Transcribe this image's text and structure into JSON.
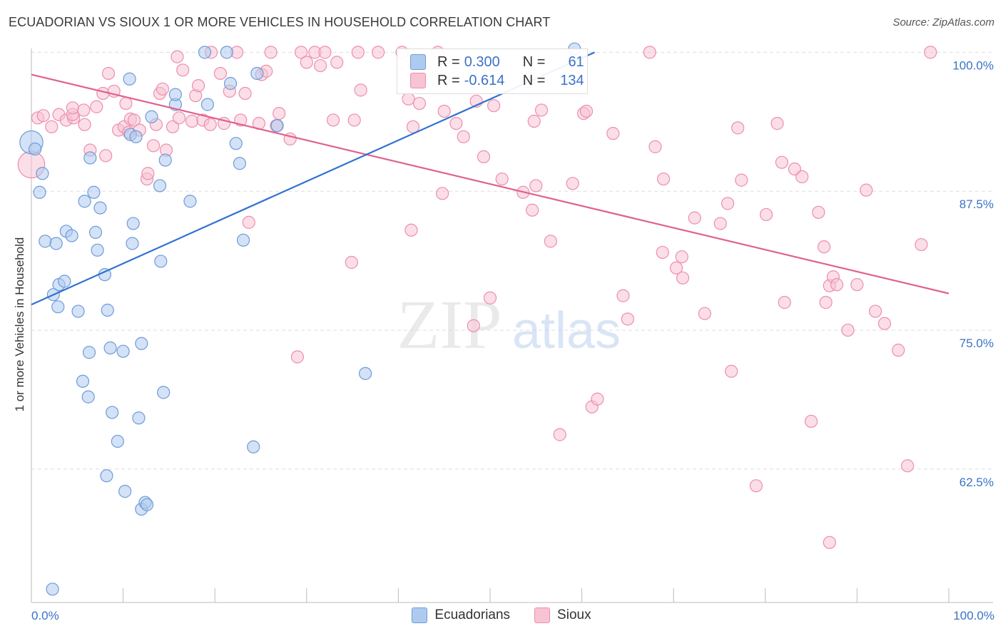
{
  "title": "ECUADORIAN VS SIOUX 1 OR MORE VEHICLES IN HOUSEHOLD CORRELATION CHART",
  "source": "Source: ZipAtlas.com",
  "watermark": {
    "zip": "ZIP",
    "atlas": "atlas"
  },
  "colors": {
    "ecuadorian_fill": "#aecbef",
    "ecuadorian_stroke": "#6f9bd8",
    "ecuadorian_line": "#2f72d0",
    "sioux_fill": "#f8c3d3",
    "sioux_stroke": "#ec8fad",
    "sioux_line": "#e0618f",
    "value_text": "#3b72c6",
    "grid": "#dddddd"
  },
  "stats": {
    "ecuadorian": {
      "r_label": "R =",
      "r_value": "0.300",
      "n_label": "N =",
      "n_value": "61"
    },
    "sioux": {
      "r_label": "R =",
      "r_value": "-0.614",
      "n_label": "N =",
      "n_value": "134"
    }
  },
  "legend": {
    "ecuadorian": "Ecuadorians",
    "sioux": "Sioux"
  },
  "chart_data": {
    "type": "scatter",
    "title": "ECUADORIAN VS SIOUX 1 OR MORE VEHICLES IN HOUSEHOLD CORRELATION CHART",
    "xlabel": "",
    "ylabel": "1 or more Vehicles in Household",
    "xlim": [
      0,
      100
    ],
    "ylim": [
      50.5,
      100.6
    ],
    "x_tick_labels": [
      {
        "value": 0,
        "label": "0.0%"
      },
      {
        "value": 100,
        "label": "100.0%"
      }
    ],
    "x_minor_ticks": [
      10,
      20,
      30,
      40,
      50,
      60,
      70,
      80,
      90
    ],
    "y_ticks": [
      {
        "value": 100.0,
        "label": "100.0%"
      },
      {
        "value": 87.5,
        "label": "87.5%"
      },
      {
        "value": 75.0,
        "label": "75.0%"
      },
      {
        "value": 62.5,
        "label": "62.5%"
      }
    ],
    "series": [
      {
        "name": "Ecuadorians",
        "trend": {
          "x0": 0,
          "y0": 77.3,
          "x1": 61.4,
          "y1": 100.0
        },
        "points": [
          [
            0.0,
            91.9,
            1.9
          ],
          [
            0.4,
            91.3,
            1
          ],
          [
            1.2,
            89.1,
            1
          ],
          [
            0.9,
            87.4,
            1
          ],
          [
            1.5,
            83.0,
            1
          ],
          [
            2.7,
            82.8,
            1
          ],
          [
            3.8,
            83.9,
            1
          ],
          [
            4.4,
            83.5,
            1
          ],
          [
            2.4,
            78.2,
            1
          ],
          [
            2.9,
            77.1,
            1
          ],
          [
            3.0,
            79.1,
            1
          ],
          [
            3.6,
            79.4,
            1
          ],
          [
            5.1,
            76.7,
            1
          ],
          [
            5.6,
            70.4,
            1
          ],
          [
            6.2,
            69.0,
            1
          ],
          [
            6.3,
            73.0,
            1
          ],
          [
            6.4,
            90.5,
            1
          ],
          [
            6.8,
            87.4,
            1
          ],
          [
            5.8,
            86.6,
            1
          ],
          [
            7.0,
            83.8,
            1
          ],
          [
            7.2,
            82.2,
            1
          ],
          [
            7.5,
            86.0,
            1
          ],
          [
            8.0,
            80.0,
            1
          ],
          [
            8.3,
            76.8,
            1
          ],
          [
            8.6,
            73.4,
            1
          ],
          [
            8.2,
            61.9,
            1
          ],
          [
            10.0,
            73.1,
            1
          ],
          [
            9.4,
            65.0,
            1
          ],
          [
            8.8,
            67.6,
            1
          ],
          [
            10.2,
            60.5,
            1
          ],
          [
            10.7,
            97.6,
            1
          ],
          [
            10.8,
            92.6,
            1
          ],
          [
            11.0,
            82.8,
            1
          ],
          [
            11.1,
            84.6,
            1
          ],
          [
            11.4,
            92.4,
            1
          ],
          [
            12.0,
            73.8,
            1
          ],
          [
            11.7,
            67.1,
            1
          ],
          [
            12.0,
            58.9,
            1
          ],
          [
            12.4,
            59.5,
            1
          ],
          [
            12.6,
            59.3,
            1
          ],
          [
            13.1,
            94.2,
            1
          ],
          [
            14.0,
            88.0,
            1
          ],
          [
            14.1,
            81.2,
            1
          ],
          [
            14.6,
            90.3,
            1
          ],
          [
            14.4,
            69.4,
            1
          ],
          [
            15.7,
            95.3,
            1
          ],
          [
            15.7,
            96.2,
            1
          ],
          [
            17.3,
            86.6,
            1
          ],
          [
            18.9,
            100.0,
            1
          ],
          [
            19.2,
            95.3,
            1
          ],
          [
            21.3,
            100.0,
            1
          ],
          [
            21.7,
            97.2,
            1
          ],
          [
            22.3,
            91.8,
            1
          ],
          [
            22.7,
            90.0,
            1
          ],
          [
            23.1,
            83.1,
            1
          ],
          [
            24.2,
            64.5,
            1
          ],
          [
            24.6,
            98.1,
            1
          ],
          [
            26.8,
            93.4,
            1
          ],
          [
            36.4,
            71.1,
            1
          ],
          [
            59.2,
            100.3,
            1
          ],
          [
            2.3,
            51.7,
            1
          ]
        ]
      },
      {
        "name": "Sioux",
        "trend": {
          "x0": 0,
          "y0": 98.0,
          "x1": 100,
          "y1": 78.3
        },
        "points": [
          [
            0.0,
            89.9,
            2.2
          ],
          [
            0.7,
            94.1,
            1
          ],
          [
            1.3,
            94.3,
            1
          ],
          [
            2.2,
            93.3,
            1
          ],
          [
            3.0,
            94.4,
            1
          ],
          [
            3.8,
            93.9,
            1
          ],
          [
            4.6,
            94.1,
            1
          ],
          [
            4.5,
            94.4,
            1
          ],
          [
            4.5,
            95.0,
            1
          ],
          [
            5.8,
            93.5,
            1
          ],
          [
            5.7,
            94.8,
            1
          ],
          [
            6.4,
            91.2,
            1
          ],
          [
            7.1,
            95.1,
            1
          ],
          [
            7.8,
            96.3,
            1
          ],
          [
            8.1,
            90.7,
            1
          ],
          [
            8.4,
            98.1,
            1
          ],
          [
            9.0,
            96.5,
            1
          ],
          [
            9.5,
            93.0,
            1
          ],
          [
            10.3,
            95.4,
            1
          ],
          [
            10.1,
            93.3,
            1
          ],
          [
            10.6,
            92.8,
            1
          ],
          [
            10.8,
            94.0,
            1
          ],
          [
            11.2,
            93.9,
            1
          ],
          [
            11.8,
            93.0,
            1
          ],
          [
            12.6,
            88.6,
            1
          ],
          [
            12.7,
            89.1,
            1
          ],
          [
            13.3,
            91.6,
            1
          ],
          [
            13.6,
            93.5,
            1
          ],
          [
            14.0,
            96.3,
            1
          ],
          [
            14.3,
            96.7,
            1
          ],
          [
            14.7,
            91.2,
            1
          ],
          [
            15.4,
            93.3,
            1
          ],
          [
            16.1,
            94.1,
            1
          ],
          [
            15.9,
            99.6,
            1
          ],
          [
            16.5,
            98.4,
            1
          ],
          [
            17.5,
            93.8,
            1
          ],
          [
            17.9,
            96.1,
            1
          ],
          [
            18.2,
            97.0,
            1
          ],
          [
            18.7,
            93.9,
            1
          ],
          [
            19.5,
            93.5,
            1
          ],
          [
            19.6,
            100.0,
            1
          ],
          [
            20.6,
            98.1,
            1
          ],
          [
            21.0,
            93.6,
            1
          ],
          [
            21.6,
            96.5,
            1
          ],
          [
            22.4,
            100.0,
            1
          ],
          [
            22.8,
            93.9,
            1
          ],
          [
            23.3,
            96.3,
            1
          ],
          [
            23.7,
            84.7,
            1
          ],
          [
            24.8,
            93.6,
            1
          ],
          [
            25.1,
            98.0,
            1
          ],
          [
            25.6,
            98.3,
            1
          ],
          [
            26.1,
            100.0,
            1
          ],
          [
            26.7,
            93.4,
            1
          ],
          [
            27.0,
            94.5,
            1
          ],
          [
            28.2,
            92.2,
            1
          ],
          [
            29.0,
            72.6,
            1
          ],
          [
            29.4,
            100.0,
            1
          ],
          [
            30.0,
            99.1,
            1
          ],
          [
            30.9,
            100.0,
            1
          ],
          [
            31.5,
            98.8,
            1
          ],
          [
            32.0,
            100.0,
            1
          ],
          [
            32.9,
            93.9,
            1
          ],
          [
            33.3,
            99.1,
            1
          ],
          [
            34.9,
            81.1,
            1
          ],
          [
            35.2,
            93.9,
            1
          ],
          [
            35.6,
            100.0,
            1
          ],
          [
            35.9,
            96.6,
            1
          ],
          [
            37.8,
            100.0,
            1
          ],
          [
            40.4,
            100.0,
            1
          ],
          [
            41.1,
            95.8,
            1
          ],
          [
            41.4,
            84.0,
            1
          ],
          [
            41.6,
            93.3,
            1
          ],
          [
            42.3,
            95.4,
            1
          ],
          [
            44.3,
            100.0,
            1
          ],
          [
            44.8,
            87.3,
            1
          ],
          [
            45.0,
            94.7,
            1
          ],
          [
            46.3,
            93.6,
            1
          ],
          [
            47.1,
            92.4,
            1
          ],
          [
            48.2,
            75.4,
            1
          ],
          [
            48.5,
            95.6,
            1
          ],
          [
            49.3,
            90.6,
            1
          ],
          [
            50.0,
            77.9,
            1
          ],
          [
            50.4,
            95.2,
            1
          ],
          [
            51.3,
            88.6,
            1
          ],
          [
            53.6,
            87.4,
            1
          ],
          [
            54.8,
            93.8,
            1
          ],
          [
            55.0,
            88.0,
            1
          ],
          [
            55.6,
            94.8,
            1
          ],
          [
            54.6,
            85.8,
            1
          ],
          [
            56.6,
            83.0,
            1
          ],
          [
            57.6,
            65.6,
            1
          ],
          [
            59.0,
            88.2,
            1
          ],
          [
            60.2,
            94.5,
            1
          ],
          [
            60.5,
            94.7,
            1
          ],
          [
            61.1,
            68.1,
            1
          ],
          [
            61.7,
            68.8,
            1
          ],
          [
            63.4,
            92.7,
            1
          ],
          [
            64.5,
            78.1,
            1
          ],
          [
            65.0,
            76.0,
            1
          ],
          [
            67.4,
            100.0,
            1
          ],
          [
            68.0,
            91.5,
            1
          ],
          [
            68.9,
            88.6,
            1
          ],
          [
            68.8,
            82.0,
            1
          ],
          [
            70.3,
            80.6,
            1
          ],
          [
            70.9,
            81.6,
            1
          ],
          [
            71.0,
            79.7,
            1
          ],
          [
            72.3,
            85.1,
            1
          ],
          [
            73.4,
            76.5,
            1
          ],
          [
            75.1,
            84.6,
            1
          ],
          [
            75.9,
            86.4,
            1
          ],
          [
            76.3,
            71.3,
            1
          ],
          [
            77.0,
            93.2,
            1
          ],
          [
            77.4,
            88.5,
            1
          ],
          [
            79.0,
            61.0,
            1
          ],
          [
            80.1,
            85.4,
            1
          ],
          [
            81.3,
            93.6,
            1
          ],
          [
            81.8,
            90.1,
            1
          ],
          [
            82.1,
            77.5,
            1
          ],
          [
            83.2,
            89.5,
            1
          ],
          [
            84.0,
            88.8,
            1
          ],
          [
            85.0,
            66.8,
            1
          ],
          [
            85.8,
            85.6,
            1
          ],
          [
            86.4,
            82.5,
            1
          ],
          [
            86.6,
            77.5,
            1
          ],
          [
            87.0,
            79.0,
            1
          ],
          [
            87.4,
            79.8,
            1
          ],
          [
            87.8,
            79.1,
            1
          ],
          [
            87.0,
            55.9,
            1
          ],
          [
            89.0,
            75.0,
            1
          ],
          [
            90.0,
            79.1,
            1
          ],
          [
            91.0,
            87.6,
            1
          ],
          [
            92.0,
            76.7,
            1
          ],
          [
            93.0,
            75.6,
            1
          ],
          [
            94.5,
            73.2,
            1
          ],
          [
            95.5,
            62.8,
            1
          ],
          [
            97.0,
            82.7,
            1
          ],
          [
            98.0,
            100.0,
            1
          ]
        ]
      }
    ]
  }
}
